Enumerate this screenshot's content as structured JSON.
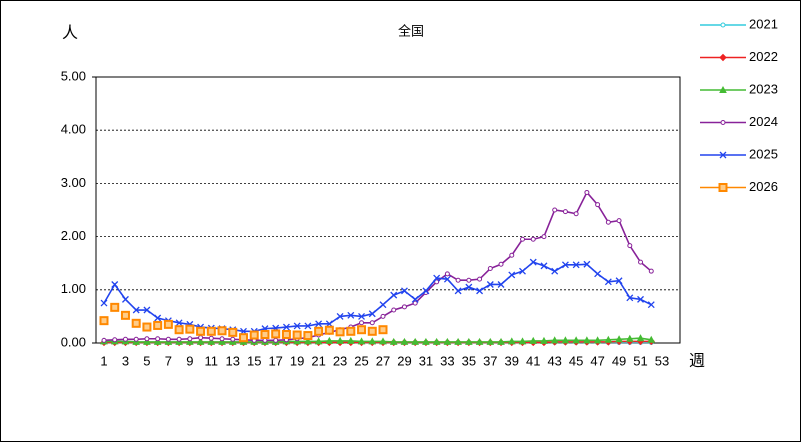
{
  "chart_data": {
    "type": "line",
    "title": "全国",
    "y_label": "人",
    "x_label": "週",
    "categories": [
      1,
      null,
      3,
      null,
      5,
      null,
      7,
      null,
      9,
      null,
      11,
      null,
      13,
      null,
      15,
      null,
      17,
      null,
      19,
      null,
      21,
      null,
      23,
      null,
      25,
      null,
      27,
      null,
      29,
      null,
      31,
      null,
      33,
      null,
      35,
      null,
      37,
      null,
      39,
      null,
      41,
      null,
      43,
      null,
      45,
      null,
      47,
      null,
      49,
      null,
      51,
      null,
      53
    ],
    "ylim": [
      0,
      5
    ],
    "yticks": [
      {
        "value": 0,
        "label": "0.00"
      },
      {
        "value": 1,
        "label": "1.00"
      },
      {
        "value": 2,
        "label": "2.00"
      },
      {
        "value": 3,
        "label": "3.00"
      },
      {
        "value": 4,
        "label": "4.00"
      },
      {
        "value": 5,
        "label": "5.00"
      }
    ],
    "grid": true,
    "series": [
      {
        "name": "2021",
        "color": "#33ccdd",
        "marker": "circle",
        "values": [
          0.01,
          0.01,
          0.01,
          0.01,
          0.01,
          0.01,
          0.01,
          0.01,
          0.01,
          0.01,
          0.01,
          0.01,
          0.01,
          0.01,
          0.01,
          0.01,
          0.01,
          0.01,
          0.01,
          0.01,
          0.01,
          0.01,
          0.01,
          0.01,
          0.01,
          0.01,
          0.01,
          0.01,
          0.01,
          0.01,
          0.01,
          0.01,
          0.01,
          0.01,
          0.01,
          0.01,
          0.01,
          0.01,
          0.01,
          0.01,
          0.01,
          0.01,
          0.01,
          0.01,
          0.01,
          0.01,
          0.01,
          0.01,
          0.01,
          0.01,
          0.01,
          0.01,
          null
        ]
      },
      {
        "name": "2022",
        "color": "#ee2222",
        "marker": "diamond",
        "values": [
          0.01,
          0.01,
          0.01,
          0.01,
          0.01,
          0.01,
          0.01,
          0.01,
          0.01,
          0.01,
          0.01,
          0.01,
          0.01,
          0.01,
          0.01,
          0.01,
          0.01,
          0.01,
          0.01,
          0.01,
          0.01,
          0.01,
          0.01,
          0.01,
          0.01,
          0.01,
          0.01,
          0.01,
          0.01,
          0.01,
          0.01,
          0.01,
          0.01,
          0.01,
          0.01,
          0.01,
          0.01,
          0.01,
          0.01,
          0.01,
          0.01,
          0.01,
          0.02,
          0.02,
          0.02,
          0.02,
          0.02,
          0.02,
          0.03,
          0.03,
          0.03,
          0.03,
          null
        ]
      },
      {
        "name": "2023",
        "color": "#44bb33",
        "marker": "triangle",
        "values": [
          0.03,
          0.03,
          0.03,
          0.02,
          0.02,
          0.02,
          0.02,
          0.02,
          0.02,
          0.02,
          0.02,
          0.02,
          0.02,
          0.02,
          0.02,
          0.02,
          0.02,
          0.03,
          0.03,
          0.03,
          0.03,
          0.04,
          0.04,
          0.04,
          0.03,
          0.03,
          0.03,
          0.02,
          0.02,
          0.02,
          0.02,
          0.02,
          0.02,
          0.02,
          0.02,
          0.02,
          0.02,
          0.02,
          0.03,
          0.03,
          0.04,
          0.04,
          0.05,
          0.05,
          0.05,
          0.05,
          0.05,
          0.06,
          0.07,
          0.08,
          0.09,
          0.06,
          null
        ]
      },
      {
        "name": "2024",
        "color": "#882299",
        "marker": "circle",
        "values": [
          0.05,
          0.06,
          0.07,
          0.07,
          0.08,
          0.08,
          0.07,
          0.07,
          0.08,
          0.1,
          0.09,
          0.08,
          0.07,
          0.06,
          0.05,
          0.05,
          0.05,
          0.06,
          0.08,
          0.1,
          0.15,
          0.2,
          0.25,
          0.3,
          0.38,
          0.38,
          0.5,
          0.62,
          0.68,
          0.75,
          0.95,
          1.15,
          1.3,
          1.18,
          1.18,
          1.2,
          1.4,
          1.48,
          1.65,
          1.95,
          1.95,
          2.0,
          2.5,
          2.47,
          2.43,
          2.83,
          2.6,
          2.27,
          2.3,
          1.83,
          1.52,
          1.35,
          null
        ]
      },
      {
        "name": "2025",
        "color": "#2244ee",
        "marker": "x",
        "values": [
          0.75,
          1.1,
          0.82,
          0.62,
          0.62,
          0.47,
          0.42,
          0.38,
          0.35,
          0.3,
          0.28,
          0.27,
          0.25,
          0.22,
          0.22,
          0.27,
          0.28,
          0.3,
          0.32,
          0.32,
          0.36,
          0.36,
          0.5,
          0.52,
          0.5,
          0.55,
          0.72,
          0.9,
          0.98,
          0.82,
          0.98,
          1.22,
          1.2,
          0.98,
          1.05,
          0.98,
          1.1,
          1.1,
          1.28,
          1.35,
          1.52,
          1.45,
          1.35,
          1.47,
          1.47,
          1.48,
          1.3,
          1.15,
          1.17,
          0.85,
          0.82,
          0.72,
          null
        ]
      },
      {
        "name": "2026",
        "color": "#ff8800",
        "marker": "square",
        "values": [
          0.42,
          0.67,
          0.52,
          0.37,
          0.3,
          0.33,
          0.35,
          0.25,
          0.26,
          0.22,
          0.22,
          0.23,
          0.2,
          0.1,
          0.15,
          0.16,
          0.17,
          0.16,
          0.15,
          0.14,
          0.22,
          0.24,
          0.21,
          0.22,
          0.25,
          0.22,
          0.25,
          null,
          null,
          null,
          null,
          null,
          null,
          null,
          null,
          null,
          null,
          null,
          null,
          null,
          null,
          null,
          null,
          null,
          null,
          null,
          null,
          null,
          null,
          null,
          null,
          null,
          null
        ]
      }
    ]
  }
}
